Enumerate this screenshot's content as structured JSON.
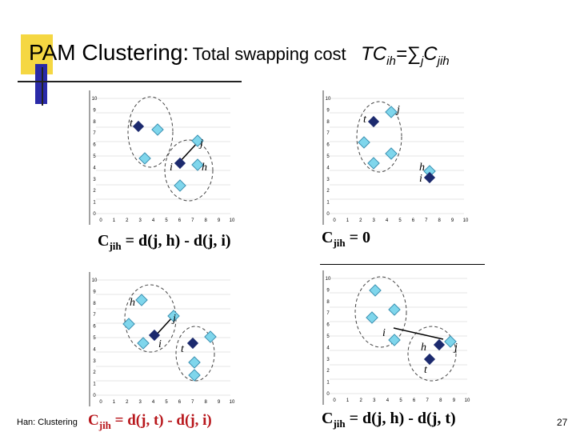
{
  "title": {
    "main": "PAM Clustering:",
    "sub": "Total swapping cost",
    "formula_lhs": "TC",
    "formula_lhs_sub": "ih",
    "formula_eq": "=",
    "formula_sum": "∑",
    "formula_sum_sub": "j",
    "formula_c": "C",
    "formula_c_sub": "jih"
  },
  "axis_ticks": [
    "0",
    "1",
    "2",
    "3",
    "4",
    "5",
    "6",
    "7",
    "8",
    "9",
    "10"
  ],
  "panels": [
    {
      "labels": {
        "t": "t",
        "i": "i",
        "h": "h",
        "j": "j"
      },
      "formula": {
        "lhs": "C",
        "sub": "jih",
        "rhs": "= d(j, h) - d(j, i)"
      }
    },
    {
      "labels": {
        "t": "t",
        "i": "i",
        "h": "h",
        "j": "j"
      },
      "formula": {
        "lhs": "C",
        "sub": "jih",
        "rhs": "= 0"
      }
    },
    {
      "labels": {
        "t": "t",
        "i": "i",
        "h": "h",
        "j": "j"
      },
      "formula": {
        "lhs": "C",
        "sub": "jih",
        "rhs": "= d(j, t) - d(j, i)"
      }
    },
    {
      "labels": {
        "t": "t",
        "i": "i",
        "h": "h",
        "j": "j"
      },
      "formula": {
        "lhs": "C",
        "sub": "jih",
        "rhs": "= d(j, h) - d(j, t)"
      }
    }
  ],
  "footer": "Han: Clustering",
  "page_number": "27",
  "colors": {
    "title_block_yellow": "#f5d742",
    "title_block_blue": "#2a2aa8",
    "point_fill": "#7fd6ec",
    "medoid_fill": "#1c2a6e"
  }
}
